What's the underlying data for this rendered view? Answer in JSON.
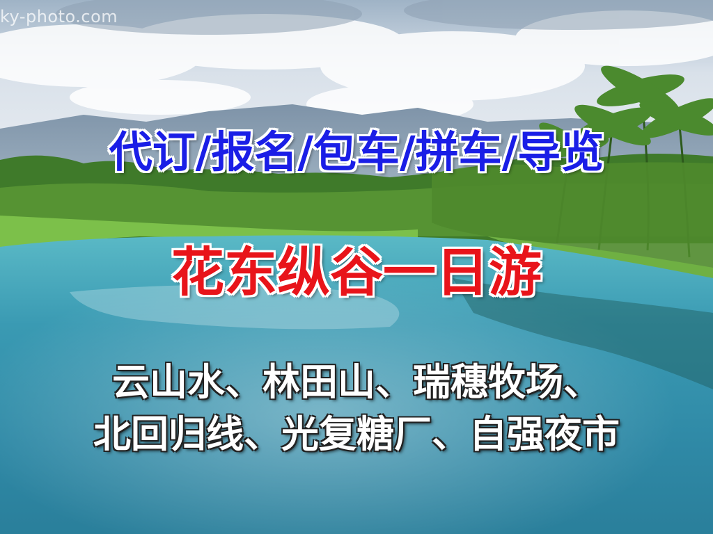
{
  "watermark": "ky-photo.com",
  "headline": "代订/报名/包车/拼车/导览",
  "title": "花东纵谷一日游",
  "attractions_line1": "云山水、林田山、瑞穗牧场、",
  "attractions_line2": "北回归线、光复糖厂、自强夜市",
  "colors": {
    "headline": "#1a1ee6",
    "title": "#e8141a",
    "attractions": "#ffffff",
    "sky": "#dfe6ee",
    "water": "#3e9fb4",
    "foliage": "#4f8a2c"
  }
}
